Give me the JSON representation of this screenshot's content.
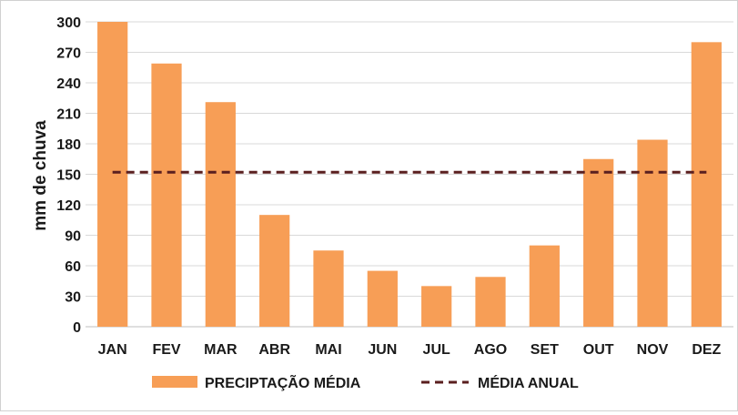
{
  "chart_data": {
    "type": "bar",
    "title": "",
    "xlabel": "",
    "ylabel": "mm  de chuva",
    "ylim": [
      0,
      300
    ],
    "yticks": [
      0,
      30,
      60,
      90,
      120,
      150,
      180,
      210,
      240,
      270,
      300
    ],
    "categories": [
      "JAN",
      "FEV",
      "MAR",
      "ABR",
      "MAI",
      "JUN",
      "JUL",
      "AGO",
      "SET",
      "OUT",
      "NOV",
      "DEZ"
    ],
    "series": [
      {
        "name": "PRECIPTAÇÃO MÉDIA",
        "type": "bar",
        "color": "#F79E56",
        "values": [
          300,
          259,
          221,
          110,
          75,
          55,
          40,
          49,
          80,
          165,
          184,
          280
        ]
      },
      {
        "name": "MÉDIA ANUAL",
        "type": "line",
        "style": "dashed",
        "color": "#5A1F1F",
        "value": 152
      }
    ],
    "grid": "horizontal",
    "legend_position": "bottom"
  }
}
